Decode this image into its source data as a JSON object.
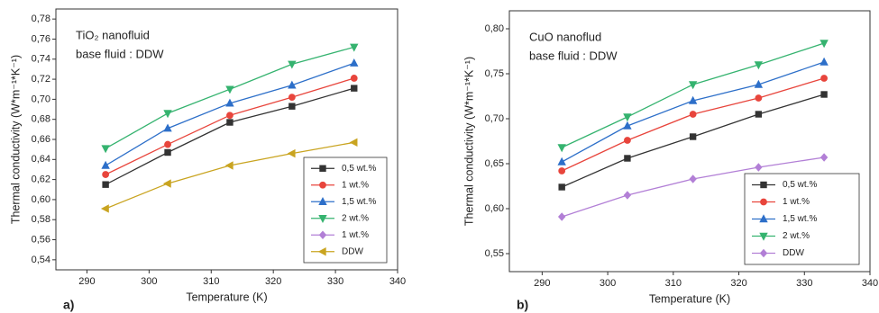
{
  "chart_data": [
    {
      "type": "line",
      "panel_label": "a)",
      "annotations": [
        "TiO₂ nanofluid",
        "base fluid : DDW"
      ],
      "x_label": "Temperature (K)",
      "y_label": "Thermal conductivity (W*m⁻¹*K⁻¹)",
      "x": [
        293,
        303,
        313,
        323,
        333
      ],
      "xlim": [
        285,
        340
      ],
      "xticks": [
        290,
        300,
        310,
        320,
        330,
        340
      ],
      "ylim": [
        0.53,
        0.79
      ],
      "yticks": [
        {
          "value": 0.54,
          "label": "0,54"
        },
        {
          "value": 0.56,
          "label": "0,56"
        },
        {
          "value": 0.58,
          "label": "0,58"
        },
        {
          "value": 0.6,
          "label": "0,60"
        },
        {
          "value": 0.62,
          "label": "0,62"
        },
        {
          "value": 0.64,
          "label": "0,64"
        },
        {
          "value": 0.66,
          "label": "0,66"
        },
        {
          "value": 0.68,
          "label": "0,68"
        },
        {
          "value": 0.7,
          "label": "0,70"
        },
        {
          "value": 0.72,
          "label": "0,72"
        },
        {
          "value": 0.74,
          "label": "0,74"
        },
        {
          "value": 0.76,
          "label": "0,76"
        },
        {
          "value": 0.78,
          "label": "0,78"
        }
      ],
      "legend": "lower right",
      "series": [
        {
          "name": "0,5 wt.%",
          "color": "#333333",
          "marker": "square",
          "values": [
            0.615,
            0.647,
            0.677,
            0.693,
            0.711
          ]
        },
        {
          "name": "1 wt.%",
          "color": "#e8453c",
          "marker": "circle",
          "values": [
            0.625,
            0.655,
            0.684,
            0.702,
            0.721
          ]
        },
        {
          "name": "1,5 wt.%",
          "color": "#2d6fc9",
          "marker": "triangle-up",
          "values": [
            0.634,
            0.671,
            0.696,
            0.714,
            0.736
          ]
        },
        {
          "name": "2 wt.%",
          "color": "#35b36f",
          "marker": "triangle-down",
          "values": [
            0.651,
            0.686,
            0.71,
            0.735,
            0.752
          ]
        },
        {
          "name": "1 wt.%",
          "color": "#b27fd6",
          "marker": "diamond",
          "values": [
            null,
            null,
            null,
            null,
            null
          ]
        },
        {
          "name": "DDW",
          "color": "#c9a420",
          "marker": "triangle-left",
          "values": [
            0.591,
            0.616,
            0.634,
            0.646,
            0.657
          ]
        }
      ]
    },
    {
      "type": "line",
      "panel_label": "b)",
      "annotations": [
        "CuO nanoflud",
        "base fluid : DDW"
      ],
      "x_label": "Temperature (K)",
      "y_label": "Thermal conductivity (W*m⁻¹*K⁻¹)",
      "x": [
        293,
        303,
        313,
        323,
        333
      ],
      "xlim": [
        285,
        340
      ],
      "xticks": [
        290,
        300,
        310,
        320,
        330,
        340
      ],
      "ylim": [
        0.53,
        0.82
      ],
      "yticks": [
        {
          "value": 0.55,
          "label": "0,55"
        },
        {
          "value": 0.6,
          "label": "0,60"
        },
        {
          "value": 0.65,
          "label": "0,65"
        },
        {
          "value": 0.7,
          "label": "0,70"
        },
        {
          "value": 0.75,
          "label": "0,75"
        },
        {
          "value": 0.8,
          "label": "0,80"
        }
      ],
      "legend": "lower right",
      "series": [
        {
          "name": "0,5 wt.%",
          "color": "#333333",
          "marker": "square",
          "values": [
            0.624,
            0.656,
            0.68,
            0.705,
            0.727
          ]
        },
        {
          "name": "1 wt.%",
          "color": "#e8453c",
          "marker": "circle",
          "values": [
            0.642,
            0.676,
            0.705,
            0.723,
            0.745
          ]
        },
        {
          "name": "1,5 wt.%",
          "color": "#2d6fc9",
          "marker": "triangle-up",
          "values": [
            0.652,
            0.692,
            0.72,
            0.738,
            0.763
          ]
        },
        {
          "name": "2 wt.%",
          "color": "#35b36f",
          "marker": "triangle-down",
          "values": [
            0.668,
            0.702,
            0.738,
            0.76,
            0.784
          ]
        },
        {
          "name": "DDW",
          "color": "#b27fd6",
          "marker": "diamond",
          "values": [
            0.591,
            0.615,
            0.633,
            0.646,
            0.657
          ]
        }
      ]
    }
  ]
}
